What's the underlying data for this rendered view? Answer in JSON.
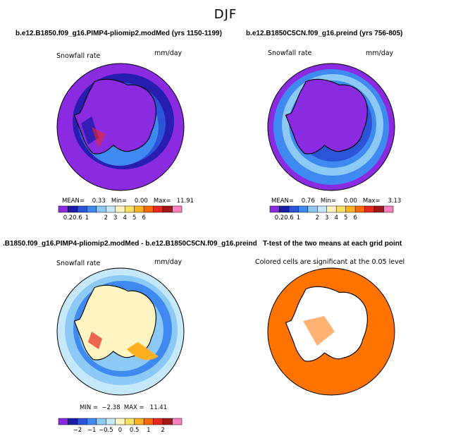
{
  "main_title": "DJF",
  "colors": {
    "ocean_purple": "#8a2be2",
    "navy": "#1c1caa",
    "blue": "#2c54d8",
    "mid_blue": "#3f8af0",
    "light_blue": "#8ccaf5",
    "pale_blue": "#c5e8fb",
    "orange": "#ff7300",
    "land_cream": "#fff5c2"
  },
  "panels": [
    {
      "title": "b.e12.B1850.f09_g16.PIMP4-pliomip2.modMed (yrs 1150-1199)",
      "left_label": "Snowfall rate",
      "right_label": "mm/day",
      "stats_label": "MEAN=    0.33   Min=    0.00   Max=   11.91",
      "colorbar_ticks": [
        "0.2",
        "0.6",
        "1",
        "2",
        "3",
        "4",
        "5",
        "6"
      ],
      "colorbar_colors": [
        "#8a2be2",
        "#1c1caa",
        "#2c54d8",
        "#3f8af0",
        "#8ccaf5",
        "#c5e8fb",
        "#fff5c2",
        "#ffe066",
        "#ffb020",
        "#ff6a00",
        "#e6281e",
        "#a01818",
        "#ff80c0"
      ]
    },
    {
      "title": "b.e12.B1850C5CN.f09_g16.preind (yrs 756-805)",
      "left_label": "Snowfall rate",
      "right_label": "mm/day",
      "stats_label": "MEAN=    0.76   Min=    0.00   Max=    3.13",
      "colorbar_ticks": [
        "0.2",
        "0.6",
        "1",
        "2",
        "3",
        "4",
        "5",
        "6"
      ],
      "colorbar_colors": [
        "#8a2be2",
        "#1c1caa",
        "#2c54d8",
        "#3f8af0",
        "#8ccaf5",
        "#c5e8fb",
        "#fff5c2",
        "#ffe066",
        "#ffb020",
        "#ff6a00",
        "#e6281e",
        "#a01818",
        "#ff80c0"
      ]
    },
    {
      "title": ".B1850.f09_g16.PIMP4-pliomip2.modMed - b.e12.B1850C5CN.f09_g16.preind",
      "left_label": "Snowfall rate",
      "right_label": "mm/day",
      "stats_label": "MIN =  −2.38  MAX =   11.41",
      "colorbar_ticks": [
        "−2",
        "−1",
        "−0.5",
        "0",
        "0.5",
        "1",
        "2"
      ],
      "colorbar_colors": [
        "#8a2be2",
        "#1c1caa",
        "#2c54d8",
        "#3f8af0",
        "#8ccaf5",
        "#c5e8fb",
        "#fff5c2",
        "#ffe066",
        "#ffb020",
        "#ff6a00",
        "#e6281e",
        "#a01818",
        "#ff80c0"
      ]
    },
    {
      "title": "T-test of the two means at each grid point",
      "left_label": "Colored cells are significant at the 0.05 level"
    }
  ],
  "chart_data": [
    {
      "type": "heatmap",
      "title": "b.e12.B1850.f09_g16.PIMP4-pliomip2.modMed (yrs 1150-1199)",
      "variable": "Snowfall rate",
      "units": "mm/day",
      "projection": "south-polar stereographic",
      "mean": 0.33,
      "min": 0.0,
      "max": 11.91,
      "levels": [
        0.2,
        0.6,
        1,
        2,
        3,
        4,
        5,
        6
      ]
    },
    {
      "type": "heatmap",
      "title": "b.e12.B1850C5CN.f09_g16.preind (yrs 756-805)",
      "variable": "Snowfall rate",
      "units": "mm/day",
      "projection": "south-polar stereographic",
      "mean": 0.76,
      "min": 0.0,
      "max": 3.13,
      "levels": [
        0.2,
        0.6,
        1,
        2,
        3,
        4,
        5,
        6
      ]
    },
    {
      "type": "heatmap",
      "title": ".B1850.f09_g16.PIMP4-pliomip2.modMed - b.e12.B1850C5CN.f09_g16.preind",
      "variable": "Snowfall rate",
      "units": "mm/day",
      "projection": "south-polar stereographic",
      "min": -2.38,
      "max": 11.41,
      "levels": [
        -2,
        -1,
        -0.5,
        0,
        0.5,
        1,
        2
      ]
    },
    {
      "type": "heatmap",
      "title": "T-test of the two means at each grid point",
      "note": "Colored cells are significant at the 0.05 level",
      "significance_level": 0.05
    }
  ]
}
